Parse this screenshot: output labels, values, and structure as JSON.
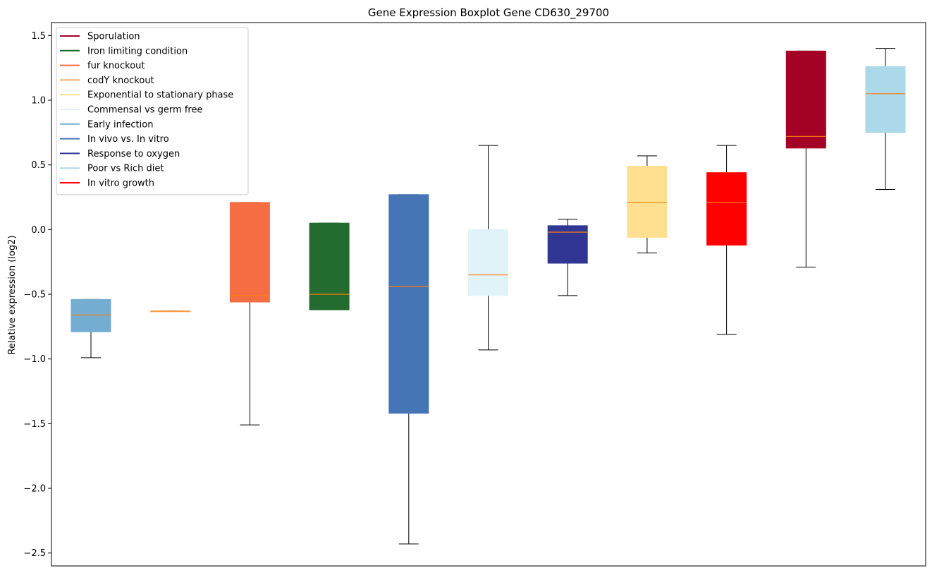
{
  "chart_data": {
    "type": "boxplot",
    "title": "Gene Expression Boxplot Gene CD630_29700",
    "xlabel": "",
    "ylabel": "Relative expression (log2)",
    "ylim": [
      -2.6,
      1.6
    ],
    "yticks": [
      -2.5,
      -2.0,
      -1.5,
      -1.0,
      -0.5,
      0.0,
      0.5,
      1.0,
      1.5
    ],
    "ytick_labels": [
      "−2.5",
      "−2.0",
      "−1.5",
      "−1.0",
      "−0.5",
      "0.0",
      "0.5",
      "1.0",
      "1.5"
    ],
    "grid": false,
    "legend_position": "top-left",
    "median_color": "#ff7f0e",
    "legend": [
      {
        "label": "Sporulation",
        "color": "#a50026"
      },
      {
        "label": "Iron limiting condition",
        "color": "#1a6b2a"
      },
      {
        "label": "fur knockout",
        "color": "#f46d43"
      },
      {
        "label": "codY knockout",
        "color": "#fdae61"
      },
      {
        "label": "Exponential to stationary phase",
        "color": "#fee090"
      },
      {
        "label": "Commensal vs germ free",
        "color": "#e0f3f8"
      },
      {
        "label": "Early infection",
        "color": "#74add1"
      },
      {
        "label": "In vivo vs. In vitro",
        "color": "#4575b4"
      },
      {
        "label": "Response to oxygen",
        "color": "#313695"
      },
      {
        "label": "Poor vs Rich diet",
        "color": "#abd9e9"
      },
      {
        "label": "In vitro growth",
        "color": "#ff0000"
      }
    ],
    "boxes": [
      {
        "color": "#74add1",
        "whislo": -0.99,
        "q1": -0.79,
        "med": -0.66,
        "q3": -0.54,
        "whishi": -0.54
      },
      {
        "color": "#fdae61",
        "whislo": -0.63,
        "q1": -0.63,
        "med": -0.63,
        "q3": -0.63,
        "whishi": -0.63
      },
      {
        "color": "#f46d43",
        "whislo": -1.51,
        "q1": -0.56,
        "med": -0.51,
        "q3": 0.21,
        "whishi": 0.21
      },
      {
        "color": "#236b2e",
        "whislo": -0.62,
        "q1": -0.62,
        "med": -0.5,
        "q3": 0.05,
        "whishi": 0.05
      },
      {
        "color": "#4575b4",
        "whislo": -2.43,
        "q1": -1.42,
        "med": -0.44,
        "q3": 0.27,
        "whishi": 0.27
      },
      {
        "color": "#e0f3f8",
        "whislo": -0.93,
        "q1": -0.51,
        "med": -0.35,
        "q3": 0.0,
        "whishi": 0.65
      },
      {
        "color": "#313695",
        "whislo": -0.51,
        "q1": -0.26,
        "med": -0.02,
        "q3": 0.03,
        "whishi": 0.08
      },
      {
        "color": "#fee090",
        "whislo": -0.18,
        "q1": -0.06,
        "med": 0.21,
        "q3": 0.49,
        "whishi": 0.57
      },
      {
        "color": "#ff0000",
        "whislo": -0.81,
        "q1": -0.12,
        "med": 0.21,
        "q3": 0.44,
        "whishi": 0.65
      },
      {
        "color": "#a50026",
        "whislo": -0.29,
        "q1": 0.63,
        "med": 0.72,
        "q3": 1.38,
        "whishi": 1.38
      },
      {
        "color": "#abd9e9",
        "whislo": 0.31,
        "q1": 0.75,
        "med": 1.05,
        "q3": 1.26,
        "whishi": 1.4
      }
    ]
  }
}
